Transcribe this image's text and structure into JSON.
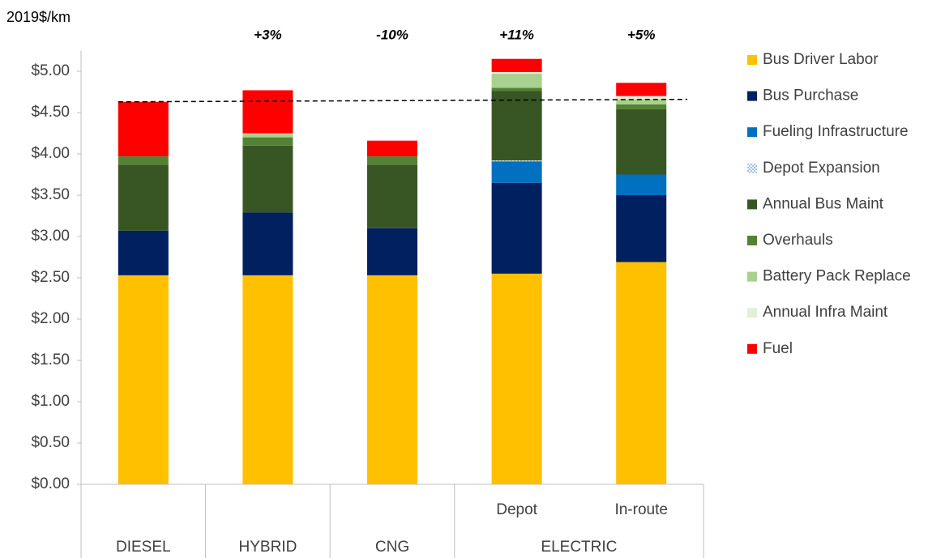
{
  "chart_data": {
    "type": "stacked_bar",
    "y_axis_label": "2019$/km",
    "categories": [
      null,
      null,
      null,
      "Depot",
      "In-route"
    ],
    "groups": [
      {
        "label": "DIESEL",
        "count": 1
      },
      {
        "label": "HYBRID",
        "count": 1
      },
      {
        "label": "CNG",
        "count": 1
      },
      {
        "label": "ELECTRIC",
        "count": 2
      }
    ],
    "annotations": [
      null,
      "+3%",
      "-10%",
      "+11%",
      "+5%"
    ],
    "series": [
      {
        "name": "Bus Driver Labor",
        "color": "#ffc000",
        "values": [
          2.53,
          2.53,
          2.53,
          2.55,
          2.69
        ]
      },
      {
        "name": "Bus Purchase",
        "color": "#002060",
        "values": [
          0.54,
          0.76,
          0.57,
          1.1,
          0.81
        ]
      },
      {
        "name": "Fueling Infrastructure",
        "color": "#0070c0",
        "values": [
          0,
          0,
          0,
          0.26,
          0.25
        ]
      },
      {
        "name": "Depot Expansion",
        "color": "#9dc3e6",
        "pattern": "checker",
        "values": [
          0,
          0,
          0,
          0.01,
          0
        ]
      },
      {
        "name": "Annual Bus Maint",
        "color": "#375623",
        "values": [
          0.8,
          0.81,
          0.77,
          0.84,
          0.79
        ]
      },
      {
        "name": "Overhauls",
        "color": "#548235",
        "values": [
          0.1,
          0.1,
          0.1,
          0.04,
          0.06
        ]
      },
      {
        "name": "Battery Pack Replace",
        "color": "#a9d18e",
        "values": [
          0,
          0.05,
          0,
          0.17,
          0.06
        ]
      },
      {
        "name": "Annual Infra Maint",
        "color": "#e2f0d9",
        "values": [
          0,
          0,
          0,
          0.02,
          0.04
        ]
      },
      {
        "name": "Fuel",
        "color": "#ff0000",
        "values": [
          0.66,
          0.52,
          0.19,
          0.16,
          0.16
        ]
      }
    ],
    "reference_line": [
      4.63,
      4.66
    ],
    "ylim": [
      0,
      5.25
    ],
    "yticks": [
      {
        "value": 0,
        "label": "$0.00"
      },
      {
        "value": 0.5,
        "label": "$0.50"
      },
      {
        "value": 1,
        "label": "$1.00"
      },
      {
        "value": 1.5,
        "label": "$1.50"
      },
      {
        "value": 2,
        "label": "$2.00"
      },
      {
        "value": 2.5,
        "label": "$2.50"
      },
      {
        "value": 3,
        "label": "$3.00"
      },
      {
        "value": 3.5,
        "label": "$3.50"
      },
      {
        "value": 4,
        "label": "$4.00"
      },
      {
        "value": 4.5,
        "label": "$4.50"
      },
      {
        "value": 5,
        "label": "$5.00"
      }
    ]
  }
}
